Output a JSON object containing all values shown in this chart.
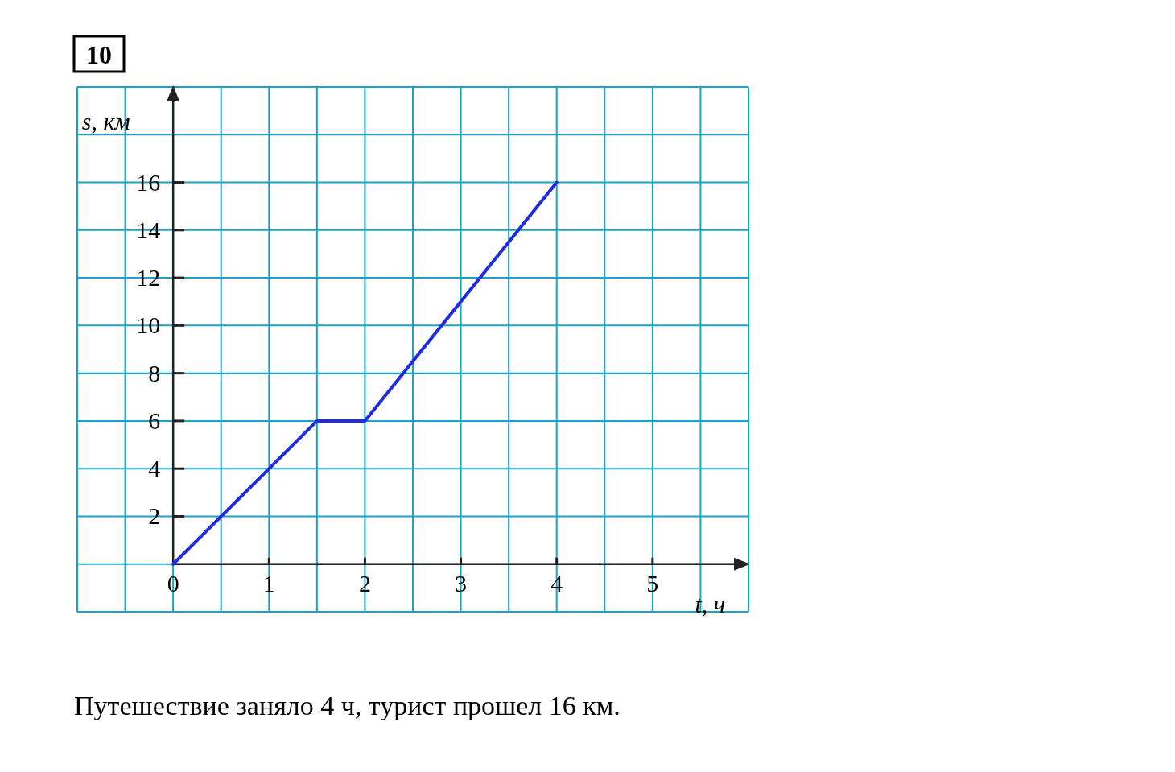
{
  "chart_data": {
    "type": "line",
    "title": "10",
    "xlabel": "t, ч",
    "ylabel": "s, км",
    "x": [
      0,
      1.5,
      2,
      4
    ],
    "series": [
      {
        "color": "#1f2de0",
        "values": [
          0,
          6,
          6,
          16
        ]
      }
    ],
    "xlim": [
      -1,
      6
    ],
    "ylim": [
      -2,
      20
    ],
    "xticks": [
      {
        "value": -1,
        "label": null
      },
      {
        "value": -0.5,
        "label": null
      },
      {
        "value": 0,
        "label": "0"
      },
      {
        "value": 0.5,
        "label": null
      },
      1,
      {
        "value": 1.5,
        "label": null
      },
      2,
      {
        "value": 2.5,
        "label": null
      },
      3,
      {
        "value": 3.5,
        "label": null
      },
      4,
      {
        "value": 4.5,
        "label": null
      },
      5,
      {
        "value": 5.5,
        "label": null
      },
      {
        "value": 6,
        "label": null
      }
    ],
    "yticks": [
      {
        "value": -2,
        "label": null
      },
      {
        "value": 0,
        "label": null
      },
      2,
      4,
      6,
      8,
      10,
      12,
      14,
      16,
      {
        "value": 18,
        "label": null
      },
      {
        "value": 20,
        "label": null
      }
    ],
    "grid": true,
    "marker": "none",
    "line_style": "solid",
    "annotations": [
      "Путешествие заняло 4 ч, турист прошел 16 км."
    ]
  }
}
